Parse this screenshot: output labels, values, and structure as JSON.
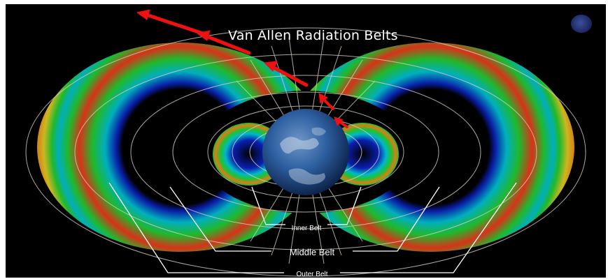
{
  "diagram": {
    "title": "Van Allen Radiation Belts",
    "belts": {
      "inner_label": "Inner Belt",
      "middle_label": "Middle Belt",
      "outer_label": "Outer Belt"
    },
    "colors": {
      "background": "#000000",
      "belt_outer_edge": "#0a1fb0",
      "belt_blue": "#1e55e0",
      "belt_cyan": "#00b8c8",
      "belt_green": "#21c22e",
      "belt_yellow": "#d8c020",
      "belt_orange": "#e07a1a",
      "belt_red": "#e4341a",
      "field_lines": "#d9cfc3",
      "arrows": "#ee1111",
      "earth_ocean": "#2d5fa0",
      "leader_lines": "#ffffff"
    },
    "icons": [
      "nasa-logo-icon",
      "earth-globe-icon",
      "solar-wind-arrow-icon"
    ]
  }
}
